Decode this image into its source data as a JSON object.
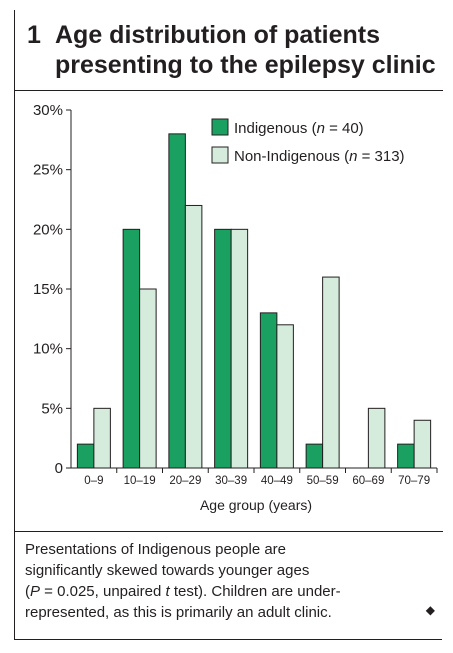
{
  "figure": {
    "number": "1",
    "title_line1": "Age distribution of patients",
    "title_line2": "presenting to the epilepsy clinic"
  },
  "chart_data": {
    "type": "bar",
    "categories": [
      "0–9",
      "10–19",
      "20–29",
      "30–39",
      "40–49",
      "50–59",
      "60–69",
      "70–79"
    ],
    "series": [
      {
        "name": "Indigenous (n = 40)",
        "legend_main": "Indigenous (",
        "legend_n": "n",
        "legend_rest": " = 40)",
        "color": "#1aa060",
        "values": [
          2,
          20,
          28,
          20,
          13,
          2,
          0,
          2
        ]
      },
      {
        "name": "Non-Indigenous (n = 313)",
        "legend_main": "Non-Indigenous (",
        "legend_n": "n",
        "legend_rest": " = 313)",
        "color": "#d5ebdc",
        "values": [
          5,
          15,
          22,
          20,
          12,
          16,
          5,
          4
        ]
      }
    ],
    "xlabel": "Age group (years)",
    "ylabel": "",
    "ylim": [
      0,
      30
    ],
    "yticks": [
      0,
      5,
      10,
      15,
      20,
      25,
      30
    ],
    "ytick_labels": [
      "0",
      "5%",
      "10%",
      "15%",
      "20%",
      "25%",
      "30%"
    ],
    "legend_position": "top-right",
    "grid": false
  },
  "caption": {
    "line1": "Presentations of Indigenous people are",
    "line2": "significantly skewed towards younger ages",
    "line3_a": "(",
    "line3_p": "P",
    "line3_b": " = 0.025, unpaired ",
    "line3_t": "t",
    "line3_c": " test). Children are under-",
    "line4": "represented, as this is primarily an adult clinic.",
    "end_mark": "◆"
  }
}
